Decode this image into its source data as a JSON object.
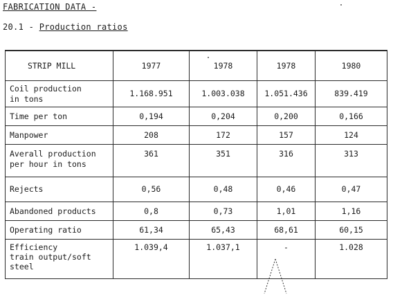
{
  "heading": "FABRICATION DATA -",
  "subheading": {
    "number": "20.1 -",
    "title": "Production ratios"
  },
  "table": {
    "columns": [
      "STRIP MILL",
      "1977",
      "1978",
      "1978",
      "1980"
    ],
    "rows": [
      {
        "label": [
          "Coil production",
          "in tons"
        ],
        "values": [
          "1.168.951",
          "1.003.038",
          "1.051.436",
          "839.419"
        ]
      },
      {
        "label": [
          "Time per ton"
        ],
        "values": [
          "0,194",
          "0,204",
          "0,200",
          "0,166"
        ]
      },
      {
        "label": [
          "Manpower"
        ],
        "values": [
          "208",
          "172",
          "157",
          "124"
        ]
      },
      {
        "label": [
          "Averall production",
          "per hour in tons"
        ],
        "values": [
          "361",
          "351",
          "316",
          "313"
        ]
      },
      {
        "label": [
          "Rejects"
        ],
        "values": [
          "0,56",
          "0,48",
          "0,46",
          "0,47"
        ]
      },
      {
        "label": [
          "Abandoned products"
        ],
        "values": [
          "0,8",
          "0,73",
          "1,01",
          "1,16"
        ]
      },
      {
        "label": [
          "Operating ratio"
        ],
        "values": [
          "61,34",
          "65,43",
          "68,61",
          "60,15"
        ]
      },
      {
        "label": [
          "Efficiency",
          "train output/soft",
          "steel"
        ],
        "values": [
          "1.039,4",
          "1.037,1",
          "-",
          "1.028"
        ]
      }
    ]
  }
}
